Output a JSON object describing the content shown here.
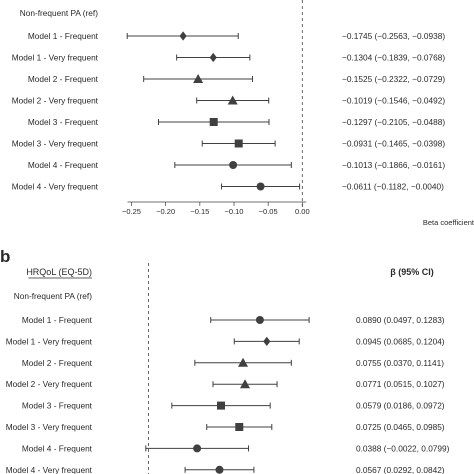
{
  "chart_data": [
    {
      "type": "forest",
      "panel_label": "",
      "header_left": "",
      "header_right": "",
      "reference_row": "Non-frequent PA (ref)",
      "xlabel": "Beta coefficient",
      "xlim": [
        -0.28,
        0.02
      ],
      "ticks": [
        -0.25,
        -0.2,
        -0.15,
        -0.1,
        -0.05,
        0.0
      ],
      "tick_labels": [
        "−0.25",
        "−0.20",
        "−0.15",
        "−0.10",
        "−0.05",
        "0.00"
      ],
      "reference_line": 0,
      "rows": [
        {
          "label": "Model 1 - Frequent",
          "estimate": -0.1745,
          "lower": -0.2563,
          "upper": -0.0938,
          "marker": "diamond",
          "ci_text": "−0.1745 (−0.2563, −0.0938)"
        },
        {
          "label": "Model 1 - Very frequent",
          "estimate": -0.1304,
          "lower": -0.1839,
          "upper": -0.0768,
          "marker": "diamond",
          "ci_text": "−0.1304 (−0.1839, −0.0768)"
        },
        {
          "label": "Model 2 - Frequent",
          "estimate": -0.1525,
          "lower": -0.2322,
          "upper": -0.0729,
          "marker": "triangle",
          "ci_text": "−0.1525 (−0.2322, −0.0729)"
        },
        {
          "label": "Model 2 - Very frequent",
          "estimate": -0.1019,
          "lower": -0.1546,
          "upper": -0.0492,
          "marker": "triangle",
          "ci_text": "−0.1019 (−0.1546, −0.0492)"
        },
        {
          "label": "Model 3 - Frequent",
          "estimate": -0.1297,
          "lower": -0.2105,
          "upper": -0.0488,
          "marker": "square",
          "ci_text": "−0.1297 (−0.2105, −0.0488)"
        },
        {
          "label": "Model 3 - Very frequent",
          "estimate": -0.0931,
          "lower": -0.1465,
          "upper": -0.0398,
          "marker": "square",
          "ci_text": "−0.0931 (−0.1465, −0.0398)"
        },
        {
          "label": "Model 4 - Frequent",
          "estimate": -0.1013,
          "lower": -0.1866,
          "upper": -0.0161,
          "marker": "circle",
          "ci_text": "−0.1013 (−0.1866, −0.0161)"
        },
        {
          "label": "Model 4 - Very frequent",
          "estimate": -0.0611,
          "lower": -0.1182,
          "upper": -0.004,
          "marker": "circle",
          "ci_text": "−0.0611 (−0.1182, −0.0040)"
        }
      ]
    },
    {
      "type": "forest",
      "panel_label": "b",
      "header_left": "HRQoL (EQ-5D)",
      "header_right": "β (95% CI)",
      "reference_row": "Non-frequent PA (ref)",
      "xlabel": "",
      "xlim": [
        -0.03,
        0.145
      ],
      "ticks": [],
      "tick_labels": [],
      "reference_line": 0,
      "rows": [
        {
          "label": "Model 1 - Frequent",
          "estimate": 0.089,
          "lower": 0.0497,
          "upper": 0.1283,
          "marker": "circle",
          "ci_text": "0.0890 (0.0497, 0.1283)"
        },
        {
          "label": "Model 1 - Very frequent",
          "estimate": 0.0945,
          "lower": 0.0685,
          "upper": 0.1204,
          "marker": "diamond",
          "ci_text": "0.0945 (0.0685, 0.1204)"
        },
        {
          "label": "Model 2 - Frequent",
          "estimate": 0.0755,
          "lower": 0.037,
          "upper": 0.1141,
          "marker": "triangle",
          "ci_text": "0.0755 (0.0370, 0.1141)"
        },
        {
          "label": "Model 2 - Very frequent",
          "estimate": 0.0771,
          "lower": 0.0515,
          "upper": 0.1027,
          "marker": "triangle",
          "ci_text": "0.0771 (0.0515, 0.1027)"
        },
        {
          "label": "Model 3 - Frequent",
          "estimate": 0.0579,
          "lower": 0.0186,
          "upper": 0.0972,
          "marker": "square",
          "ci_text": "0.0579 (0.0186, 0.0972)"
        },
        {
          "label": "Model 3 - Very frequent",
          "estimate": 0.0725,
          "lower": 0.0465,
          "upper": 0.0985,
          "marker": "square",
          "ci_text": "0.0725 (0.0465, 0.0985)"
        },
        {
          "label": "Model 4 - Frequent",
          "estimate": 0.0388,
          "lower": -0.0022,
          "upper": 0.0799,
          "marker": "circle",
          "ci_text": "0.0388 (−0.0022, 0.0799)"
        },
        {
          "label": "Model 4 - Very frequent",
          "estimate": 0.0567,
          "lower": 0.0292,
          "upper": 0.0842,
          "marker": "circle",
          "ci_text": "0.0567 (0.0292, 0.0842)"
        }
      ]
    }
  ],
  "colors": {
    "marker": "#404040",
    "line": "#404040",
    "text": "#2a2a2a",
    "reference_line": "#555555"
  }
}
